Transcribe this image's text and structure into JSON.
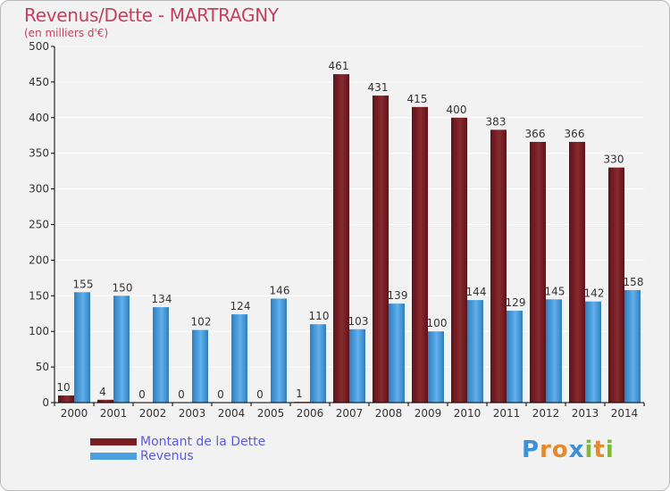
{
  "header": {
    "title": "Revenus/Dette - MARTRAGNY",
    "subtitle": "(en milliers d'€)"
  },
  "logo": {
    "text": "Proxiti",
    "letters": [
      {
        "ch": "P",
        "color": "#3d8fd6"
      },
      {
        "ch": "r",
        "color": "#e48a2a"
      },
      {
        "ch": "o",
        "color": "#e48a2a"
      },
      {
        "ch": "x",
        "color": "#3d8fd6"
      },
      {
        "ch": "i",
        "color": "#7cb83a"
      },
      {
        "ch": "t",
        "color": "#e48a2a"
      },
      {
        "ch": "i",
        "color": "#7cb83a"
      }
    ]
  },
  "colors": {
    "dette": "#7a1e22",
    "revenus": "#4aa0e0",
    "grid": "#ffffff",
    "axis": "#000000"
  },
  "chart_data": {
    "type": "bar",
    "categories": [
      "2000",
      "2001",
      "2002",
      "2003",
      "2004",
      "2005",
      "2006",
      "2007",
      "2008",
      "2009",
      "2010",
      "2011",
      "2012",
      "2013",
      "2014"
    ],
    "series": [
      {
        "name": "Montant de la Dette",
        "values": [
          10,
          4,
          0,
          0,
          0,
          0,
          1,
          461,
          431,
          415,
          400,
          383,
          366,
          366,
          330
        ]
      },
      {
        "name": "Revenus",
        "values": [
          155,
          150,
          134,
          102,
          124,
          146,
          110,
          103,
          139,
          100,
          144,
          129,
          145,
          142,
          158
        ]
      }
    ],
    "title": "Revenus/Dette - MARTRAGNY",
    "ylabel": "",
    "xlabel": "",
    "ylim": [
      0,
      500
    ],
    "yticks": [
      0,
      50,
      100,
      150,
      200,
      250,
      300,
      350,
      400,
      450,
      500
    ],
    "grid": true,
    "legend": "bottom-left"
  }
}
